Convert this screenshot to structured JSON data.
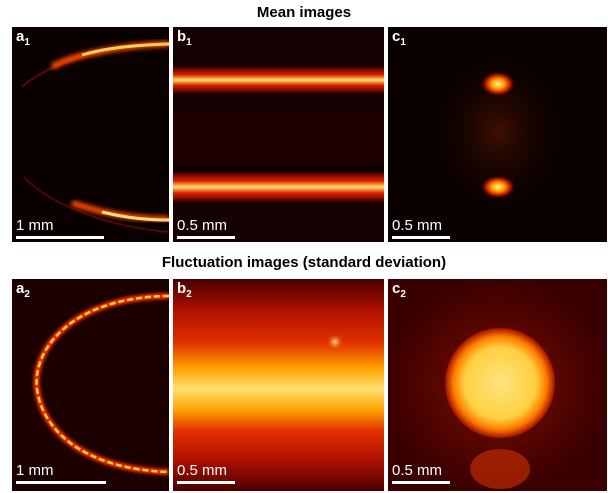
{
  "titles": {
    "mean": "Mean images",
    "fluctuation": "Fluctuation images (standard deviation)"
  },
  "panels": {
    "a1": {
      "letter": "a",
      "sub": "1",
      "scale_text": "1 mm"
    },
    "b1": {
      "letter": "b",
      "sub": "1",
      "scale_text": "0.5 mm"
    },
    "c1": {
      "letter": "c",
      "sub": "1",
      "scale_text": "0.5 mm"
    },
    "a2": {
      "letter": "a",
      "sub": "2",
      "scale_text": "1 mm"
    },
    "b2": {
      "letter": "b",
      "sub": "2",
      "scale_text": "0.5 mm"
    },
    "c2": {
      "letter": "c",
      "sub": "2",
      "scale_text": "0.5 mm"
    }
  },
  "colors": {
    "background": "#0a0000",
    "colormap": "hot",
    "scalebar": "#ffffff"
  }
}
